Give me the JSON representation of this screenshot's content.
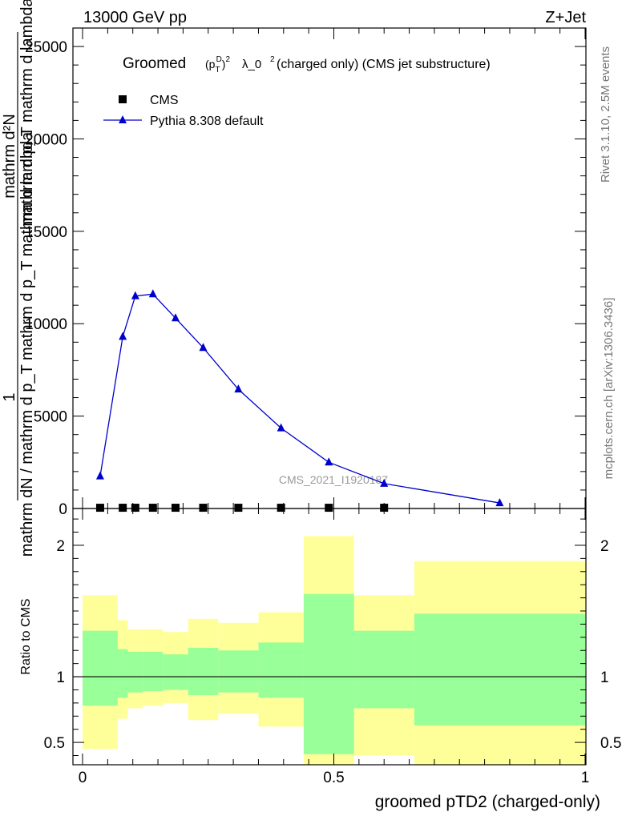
{
  "header": {
    "left": "13000 GeV pp",
    "right": "Z+Jet"
  },
  "side_labels": {
    "top": "Rivet 3.1.10,  2.5M events",
    "bottom": "mcplots.cern.ch [arXiv:1306.3436]"
  },
  "chart_data": [
    {
      "type": "line",
      "title": "Groomed (p_T^D)^2 λ_0^2  (charged only) (CMS jet substructure)",
      "title_parts": {
        "main": "Groomed",
        "rest": "λ_0",
        "suffix": "  (charged only) (CMS jet substructure)"
      },
      "ylabel_lines": [
        "1",
        "mathrm dN / mathrm d p_T mathrm d p_T mathrm d lambda",
        "mathrm d²N",
        "mathrm d p_T mathrm d lambda"
      ],
      "xlim": [
        0,
        1
      ],
      "ylim": [
        0,
        26000
      ],
      "yticks": [
        0,
        5000,
        10000,
        15000,
        20000,
        25000
      ],
      "ytick_labels": [
        "0",
        "5000",
        "10000",
        "15000",
        "20000",
        "25000"
      ],
      "watermark": "CMS_2021_I1920187",
      "legend_position": "top-left",
      "series": [
        {
          "name": "CMS",
          "marker": "square",
          "color": "#000000",
          "x": [
            0.035,
            0.08,
            0.105,
            0.14,
            0.185,
            0.24,
            0.31,
            0.395,
            0.49,
            0.6
          ],
          "y": [
            40,
            40,
            40,
            40,
            40,
            40,
            40,
            40,
            40,
            40
          ]
        },
        {
          "name": "Pythia 8.308 default",
          "marker": "triangle",
          "color": "#0000cc",
          "x": [
            0.035,
            0.08,
            0.105,
            0.14,
            0.185,
            0.24,
            0.31,
            0.395,
            0.49,
            0.6,
            0.83
          ],
          "y": [
            1750,
            9300,
            11500,
            11600,
            10300,
            8700,
            6450,
            4350,
            2500,
            1350,
            300
          ]
        }
      ]
    },
    {
      "type": "area",
      "ylabel": "Ratio to CMS",
      "xlabel": "groomed pTD2 (charged-only)",
      "xlim": [
        0,
        1
      ],
      "ylim": [
        0.33,
        2.28
      ],
      "xticks": [
        0,
        0.5,
        1
      ],
      "xtick_labels": [
        "0",
        "0.5",
        "1"
      ],
      "yticks": [
        0.5,
        1,
        2
      ],
      "ytick_labels": [
        "0.5",
        "1",
        "2"
      ],
      "reference_line": 1,
      "colors": {
        "inner": "#99ff99",
        "outer": "#ffff99"
      },
      "bins": [
        {
          "x0": 0.0,
          "x1": 0.07,
          "in_lo": 0.78,
          "in_hi": 1.35,
          "out_lo": 0.45,
          "out_hi": 1.62
        },
        {
          "x0": 0.07,
          "x1": 0.09,
          "in_lo": 0.84,
          "in_hi": 1.21,
          "out_lo": 0.68,
          "out_hi": 1.43
        },
        {
          "x0": 0.09,
          "x1": 0.12,
          "in_lo": 0.88,
          "in_hi": 1.19,
          "out_lo": 0.76,
          "out_hi": 1.36
        },
        {
          "x0": 0.12,
          "x1": 0.16,
          "in_lo": 0.89,
          "in_hi": 1.19,
          "out_lo": 0.78,
          "out_hi": 1.36
        },
        {
          "x0": 0.16,
          "x1": 0.21,
          "in_lo": 0.9,
          "in_hi": 1.17,
          "out_lo": 0.8,
          "out_hi": 1.34
        },
        {
          "x0": 0.21,
          "x1": 0.27,
          "in_lo": 0.86,
          "in_hi": 1.22,
          "out_lo": 0.67,
          "out_hi": 1.44
        },
        {
          "x0": 0.27,
          "x1": 0.35,
          "in_lo": 0.88,
          "in_hi": 1.2,
          "out_lo": 0.72,
          "out_hi": 1.41
        },
        {
          "x0": 0.35,
          "x1": 0.44,
          "in_lo": 0.84,
          "in_hi": 1.26,
          "out_lo": 0.62,
          "out_hi": 1.49
        },
        {
          "x0": 0.44,
          "x1": 0.54,
          "in_lo": 0.41,
          "in_hi": 1.63,
          "out_lo": 0.33,
          "out_hi": 2.07
        },
        {
          "x0": 0.54,
          "x1": 0.66,
          "in_lo": 0.76,
          "in_hi": 1.35,
          "out_lo": 0.4,
          "out_hi": 1.62
        },
        {
          "x0": 0.66,
          "x1": 1.0,
          "in_lo": 0.63,
          "in_hi": 1.48,
          "out_lo": 0.33,
          "out_hi": 1.88
        }
      ]
    }
  ]
}
